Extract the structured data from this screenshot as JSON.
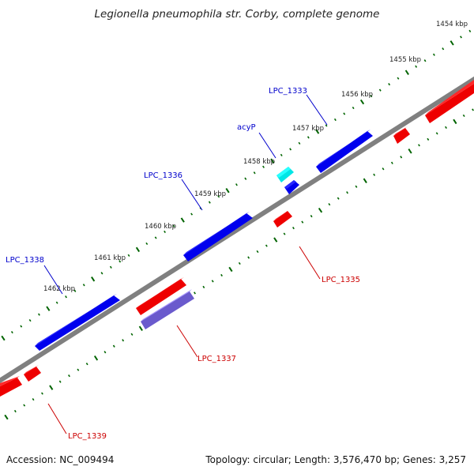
{
  "title": "Legionella pneumophila str. Corby, complete genome",
  "footer": {
    "accession": "Accession: NC_009494",
    "summary": "Topology: circular; Length: 3,576,470 bp; Genes: 3,257"
  },
  "colors": {
    "backbone": "#808080",
    "forward_gene": "#0000ee",
    "reverse_gene": "#ee0000",
    "highlight_gene": "#00e6e6",
    "rna_gene": "#6a5acd",
    "tick": "#006400",
    "forward_label": "#0000cc",
    "reverse_label": "#cc0000"
  },
  "ticks": [
    "1454 kbp",
    "1455 kbp",
    "1456 kbp",
    "1457 kbp",
    "1458 kbp",
    "1459 kbp",
    "1460 kbp",
    "1461 kbp",
    "1462 kbp"
  ],
  "genes": [
    {
      "label": "LPC_1333",
      "strand": "forward"
    },
    {
      "label": "acyP",
      "strand": "forward"
    },
    {
      "label": "LPC_1336",
      "strand": "forward"
    },
    {
      "label": "LPC_1338",
      "strand": "forward"
    },
    {
      "label": "LPC_1335",
      "strand": "reverse"
    },
    {
      "label": "LPC_1337",
      "strand": "reverse"
    },
    {
      "label": "LPC_1339",
      "strand": "reverse"
    }
  ]
}
